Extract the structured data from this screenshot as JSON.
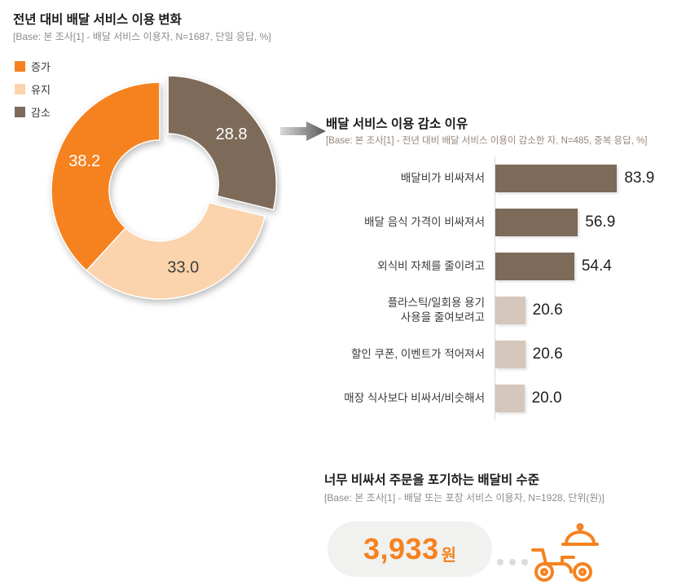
{
  "colors": {
    "orange": "#F5821F",
    "peach": "#FBD3AC",
    "brown": "#7D6A59",
    "beige": "#D5C7BB",
    "text_dark": "#1A1A1A",
    "text_gray": "#8C8C8C",
    "pill_bg": "#F1F1F0",
    "dot_gray": "#DCDCDC"
  },
  "donut_section": {
    "title": "전년 대비 배달 서비스 이용 변화",
    "base": "[Base: 본 조사[1] - 배달 서비스 이용자, N=1687, 단일 응답, %]",
    "legend": [
      {
        "label": "증가",
        "color": "#F5821F"
      },
      {
        "label": "유지",
        "color": "#FBD3AC"
      },
      {
        "label": "감소",
        "color": "#7D6A59"
      }
    ]
  },
  "reasons_section": {
    "title": "배달 서비스 이용 감소 이유",
    "base": "[Base: 본 조사[1] - 전년 대비 배달 서비스 이용이 감소한 자, N=485, 중복 응답, %]"
  },
  "fee_section": {
    "title": "너무 비싸서 주문을 포기하는 배달비 수준",
    "base": "[Base: 본 조사[1] - 배달 또는 포장 서비스 이용자, N=1928, 단위(원)]",
    "amount": "3,933",
    "unit": "원"
  },
  "chart_data": [
    {
      "type": "pie",
      "title": "전년 대비 배달 서비스 이용 변화",
      "labels": [
        "감소",
        "유지",
        "증가"
      ],
      "values": [
        28.8,
        33.0,
        38.2
      ],
      "colors": [
        "#7D6A59",
        "#FBD3AC",
        "#F5821F"
      ],
      "label_colors": [
        "#FFFFFF",
        "#3F3F3F",
        "#FFFFFF"
      ],
      "donut": true,
      "start_angle": "top",
      "direction": "clockwise",
      "exploded_index": 0,
      "legend_position": "left"
    },
    {
      "type": "bar",
      "orientation": "horizontal",
      "title": "배달 서비스 이용 감소 이유",
      "categories": [
        "배달비가 비싸져서",
        "배달 음식 가격이 비싸져서",
        "외식비 자체를 줄이려고",
        "플라스틱/일회용 용기\n사용을 줄여보려고",
        "할인 쿠폰, 이벤트가 적어져서",
        "매장 식사보다 비싸서/비슷해서"
      ],
      "values": [
        83.9,
        56.9,
        54.4,
        20.6,
        20.6,
        20.0
      ],
      "bar_colors": [
        "#7D6A59",
        "#7D6A59",
        "#7D6A59",
        "#D5C7BB",
        "#D5C7BB",
        "#D5C7BB"
      ],
      "xlim": [
        0,
        100
      ],
      "value_labels": true,
      "grid": false
    }
  ]
}
